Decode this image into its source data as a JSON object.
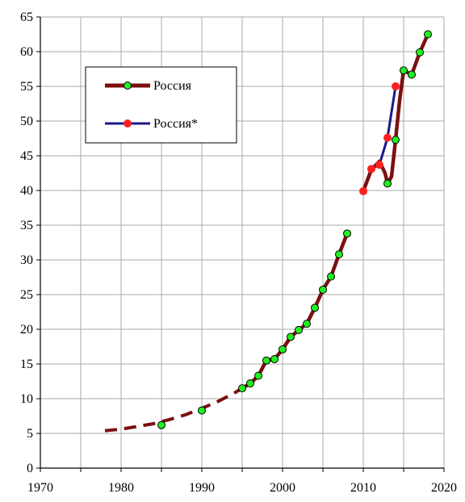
{
  "chart_data": {
    "type": "line",
    "title": "",
    "xlabel": "",
    "ylabel": "",
    "xlim": [
      1970,
      2020
    ],
    "ylim": [
      0,
      65
    ],
    "xticks": [
      1970,
      1980,
      1990,
      2000,
      2010,
      2020
    ],
    "yticks": [
      0,
      5,
      10,
      15,
      20,
      25,
      30,
      35,
      40,
      45,
      50,
      55,
      60,
      65
    ],
    "grid": true,
    "legend_position": "top-left",
    "series": [
      {
        "name": "Россия",
        "line_color": "#7B1010",
        "marker_color": "#22EE22",
        "points": [
          [
            1985,
            6.2
          ],
          [
            1990,
            8.3
          ],
          [
            1995,
            11.5
          ],
          [
            1996,
            12.2
          ],
          [
            1997,
            13.3
          ],
          [
            1998,
            15.5
          ],
          [
            1999,
            15.7
          ],
          [
            2000,
            17.1
          ],
          [
            2001,
            18.9
          ],
          [
            2002,
            19.9
          ],
          [
            2003,
            20.8
          ],
          [
            2004,
            23.1
          ],
          [
            2005,
            25.7
          ],
          [
            2006,
            27.6
          ],
          [
            2007,
            30.8
          ],
          [
            2008,
            33.8
          ],
          [
            2013,
            41.0
          ],
          [
            2014,
            47.3
          ],
          [
            2015,
            57.3
          ],
          [
            2016,
            56.7
          ],
          [
            2017,
            59.9
          ],
          [
            2018,
            62.5
          ]
        ],
        "fit_curve": [
          [
            1978,
            5.4
          ],
          [
            1980,
            5.6
          ],
          [
            1982,
            6.0
          ],
          [
            1984,
            6.4
          ],
          [
            1986,
            7.0
          ],
          [
            1988,
            7.7
          ],
          [
            1990,
            8.6
          ],
          [
            1992,
            9.6
          ],
          [
            1994,
            10.8
          ],
          [
            1995,
            11.5
          ]
        ],
        "recent_curve": [
          [
            2010,
            39.9
          ],
          [
            2011,
            43.0
          ],
          [
            2012,
            44.2
          ],
          [
            2012.7,
            42.5
          ],
          [
            2013,
            41.0
          ],
          [
            2013.5,
            42.0
          ],
          [
            2014,
            47.3
          ],
          [
            2014.5,
            53.0
          ],
          [
            2015,
            57.3
          ]
        ]
      },
      {
        "name": "Россия*",
        "line_color": "#1A1A8A",
        "marker_color": "#FF2020",
        "points": [
          [
            2010,
            39.9
          ],
          [
            2011,
            43.1
          ],
          [
            2012,
            43.7
          ],
          [
            2013,
            47.6
          ],
          [
            2014,
            55.0
          ]
        ]
      }
    ]
  }
}
